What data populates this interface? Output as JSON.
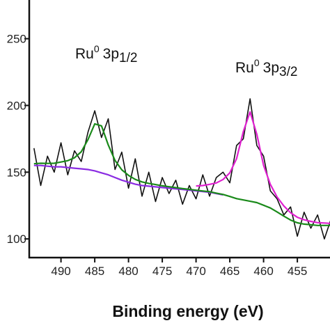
{
  "chart_data": {
    "type": "line",
    "xlabel": "Binding energy (eV)",
    "x": [
      494,
      493,
      492,
      491,
      490,
      489,
      488,
      487,
      486,
      485,
      484,
      483,
      482,
      481,
      480,
      479,
      478,
      477,
      476,
      475,
      474,
      473,
      472,
      471,
      470,
      469,
      468,
      467,
      466,
      465,
      464,
      463,
      462,
      461,
      460,
      459,
      458,
      457,
      456,
      455,
      454,
      453,
      452,
      451,
      450
    ],
    "series": [
      {
        "color": "#111111",
        "values": [
          168,
          140,
          162,
          150,
          172,
          148,
          166,
          158,
          180,
          196,
          176,
          190,
          152,
          165,
          138,
          160,
          132,
          150,
          128,
          146,
          134,
          144,
          126,
          140,
          130,
          148,
          132,
          146,
          150,
          142,
          170,
          175,
          205,
          170,
          162,
          136,
          130,
          118,
          124,
          102,
          120,
          108,
          118,
          100,
          115
        ]
      },
      {
        "color": "#8a2be2",
        "values": [
          155,
          155,
          154.5,
          154,
          154,
          153.5,
          153,
          152.5,
          152,
          151,
          149.5,
          148,
          146,
          144,
          142.5,
          141,
          140,
          139.5,
          139,
          138.5,
          138,
          137.5,
          137,
          136.5,
          136,
          135.5,
          135,
          134,
          133,
          null,
          null,
          null,
          null,
          null,
          null,
          null,
          null,
          null,
          null,
          null,
          null,
          null,
          null,
          null,
          null
        ]
      },
      {
        "color": "#1a8a1a",
        "values": [
          156.3,
          156.7,
          156.6,
          156.7,
          157.6,
          158.6,
          160.8,
          165.3,
          174.4,
          186.2,
          184.7,
          170.4,
          158.8,
          151.8,
          147.6,
          144.6,
          142.7,
          141.6,
          140.7,
          139.8,
          139.1,
          138.4,
          137.7,
          137.1,
          136.5,
          135.9,
          135.4,
          134.3,
          133.3,
          131.8,
          130.2,
          129.2,
          128.2,
          127.2,
          125.2,
          123.2,
          120.2,
          117.1,
          114.1,
          112.1,
          111.1,
          110.6,
          110.1,
          110.1,
          110.1
        ]
      },
      {
        "color": "#e020d0",
        "values": [
          null,
          null,
          null,
          null,
          null,
          null,
          null,
          null,
          null,
          null,
          null,
          null,
          null,
          null,
          null,
          null,
          null,
          null,
          null,
          null,
          null,
          null,
          null,
          null,
          139.7,
          140.0,
          140.9,
          141.9,
          144.5,
          149.5,
          160.1,
          180.4,
          195.2,
          178.4,
          155.1,
          140.9,
          131.4,
          124.7,
          119.6,
          116.2,
          114.3,
          113.1,
          112.2,
          111.9,
          111.6
        ]
      }
    ],
    "annotations": [
      {
        "base": "Ru",
        "sup": "0",
        "main": "3p",
        "sub": "1/2"
      },
      {
        "base": "Ru",
        "sup": "0",
        "main": "3p",
        "sub": "3/2"
      }
    ],
    "xlim": [
      494.7,
      450
    ],
    "xticks": [
      490,
      485,
      480,
      475,
      470,
      465,
      460,
      455
    ],
    "ylim": [
      86,
      279
    ],
    "yticks": [
      100,
      150,
      200,
      250
    ]
  }
}
